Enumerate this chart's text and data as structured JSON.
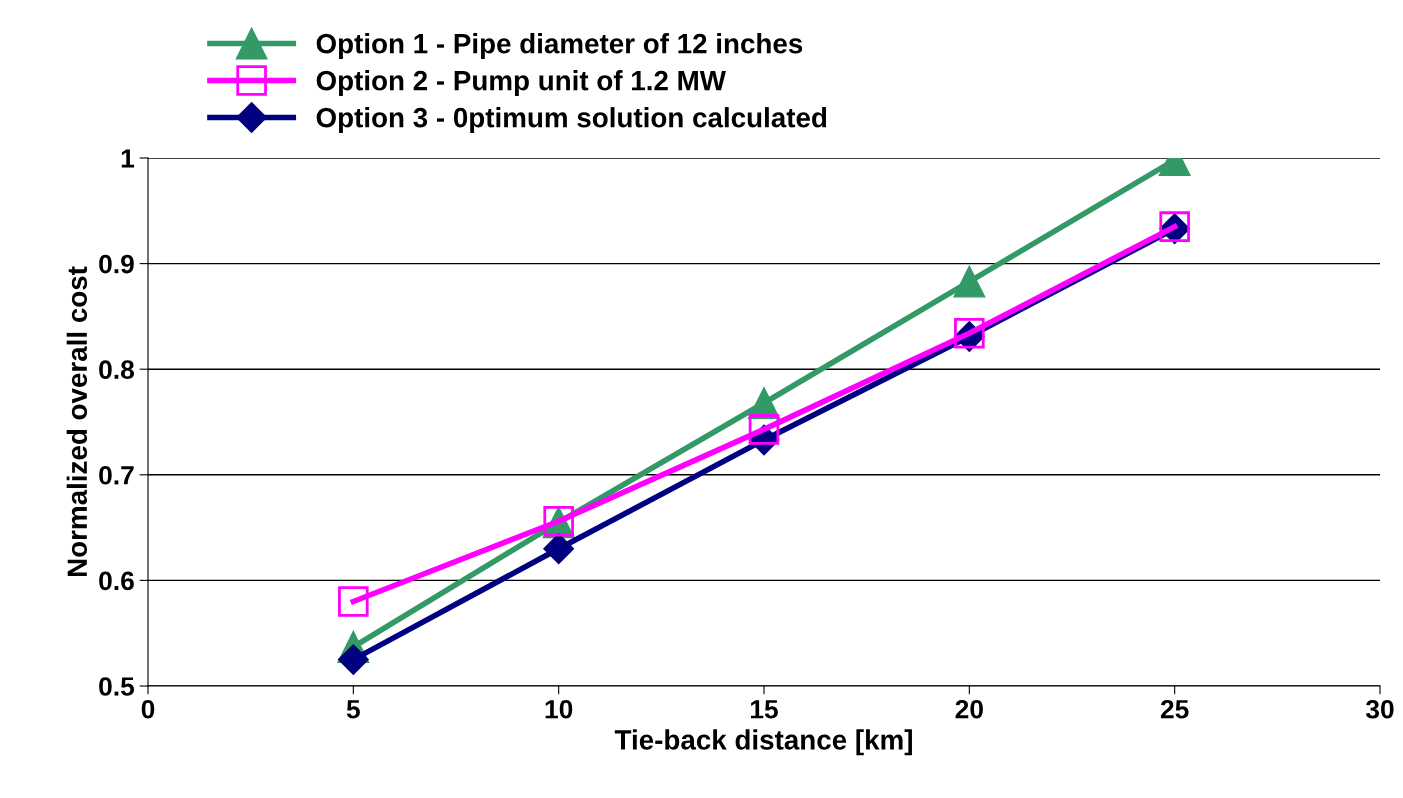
{
  "chart_data": {
    "type": "line",
    "xlabel": "Tie-back distance [km]",
    "ylabel": "Normalized overall cost",
    "x": [
      5,
      10,
      15,
      20,
      25
    ],
    "series": [
      {
        "name": "Option 1 - Pipe diameter of 12 inches",
        "color": "#339966",
        "marker": "triangle",
        "values": [
          0.537,
          0.655,
          0.768,
          0.883,
          0.998
        ]
      },
      {
        "name": "Option 2 - Pump unit of 1.2 MW",
        "color": "#ff00ff",
        "marker": "square",
        "values": [
          0.58,
          0.656,
          0.743,
          0.834,
          0.935
        ]
      },
      {
        "name": "Option 3 - 0ptimum solution calculated",
        "color": "#000080",
        "marker": "diamond",
        "values": [
          0.525,
          0.63,
          0.733,
          0.831,
          0.933
        ]
      }
    ],
    "xlim": [
      0,
      30
    ],
    "xticks": [
      0,
      5,
      10,
      15,
      20,
      25,
      30
    ],
    "ylim": [
      0.5,
      1
    ],
    "yticks": [
      0.5,
      0.6,
      0.7,
      0.8,
      0.9,
      1
    ],
    "grid": "y",
    "legend": "top left",
    "line_style": "solid"
  }
}
